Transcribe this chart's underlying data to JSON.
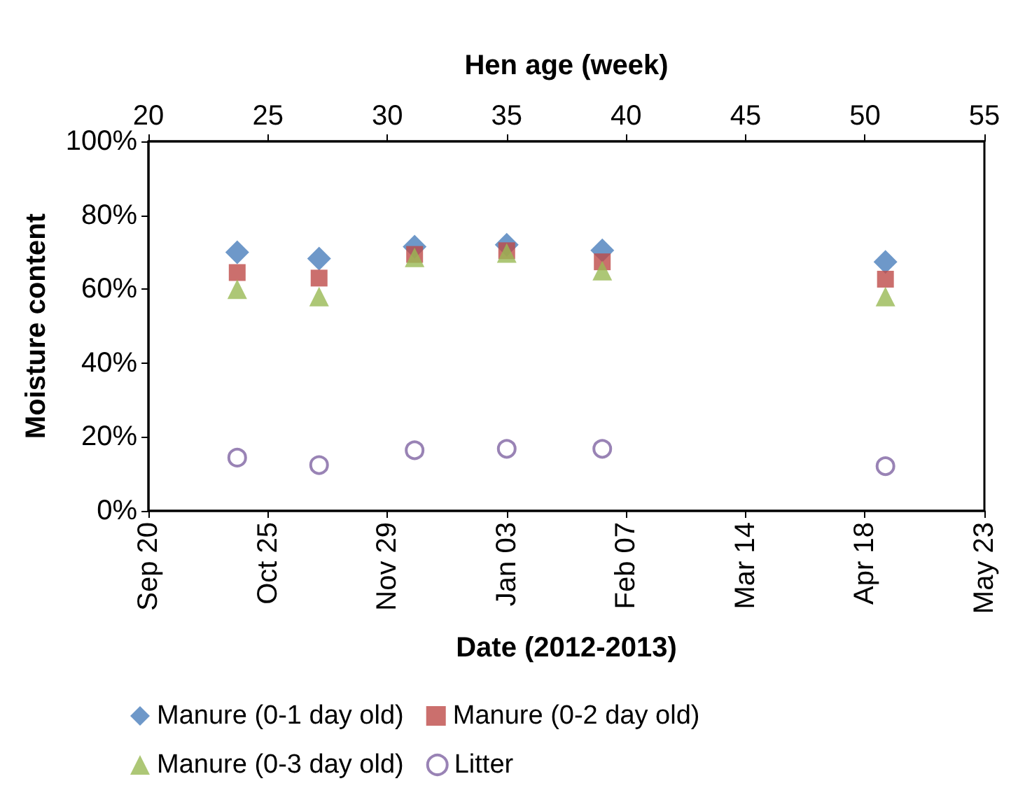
{
  "chart_data": {
    "type": "scatter",
    "x": [
      "2012-10-16",
      "2012-11-09",
      "2012-12-07",
      "2013-01-03",
      "2013-01-31",
      "2013-04-24"
    ],
    "series": [
      {
        "name": "Manure (0-1 day old)",
        "color": "#4a7ebb",
        "marker": "diamond",
        "values": [
          70,
          68.3,
          71.5,
          72,
          70.5,
          67.4
        ]
      },
      {
        "name": "Manure (0-2 day old)",
        "color": "#be4b48",
        "marker": "square",
        "values": [
          64.5,
          63,
          69.4,
          70.4,
          67.4,
          62.7
        ]
      },
      {
        "name": "Manure (0-3 day old)",
        "color": "#98b954",
        "marker": "triangle",
        "values": [
          60,
          58,
          68.6,
          69.8,
          65,
          58
        ]
      },
      {
        "name": "Litter",
        "color": "#8064a2",
        "marker": "circle",
        "values": [
          14.4,
          12.4,
          16.4,
          16.8,
          16.8,
          12.1
        ]
      }
    ],
    "xlabel": "Date (2012-2013)",
    "ylabel": "Moisture content",
    "x2label": "Hen age (week)",
    "xlim": [
      "2012-09-20",
      "2013-05-23"
    ],
    "xticks": [
      {
        "value": "2012-09-20",
        "label": "Sep 20"
      },
      {
        "value": "2012-10-25",
        "label": "Oct 25"
      },
      {
        "value": "2012-11-29",
        "label": "Nov 29"
      },
      {
        "value": "2013-01-03",
        "label": "Jan 03"
      },
      {
        "value": "2013-02-07",
        "label": "Feb 07"
      },
      {
        "value": "2013-03-14",
        "label": "Mar 14"
      },
      {
        "value": "2013-04-18",
        "label": "Apr 18"
      },
      {
        "value": "2013-05-23",
        "label": "May 23"
      }
    ],
    "x2lim": [
      20,
      55
    ],
    "x2ticks": [
      20,
      25,
      30,
      35,
      40,
      45,
      50,
      55
    ],
    "ylim": [
      0,
      100
    ],
    "yticks": [
      {
        "value": 0,
        "label": "0%"
      },
      {
        "value": 20,
        "label": "20%"
      },
      {
        "value": 40,
        "label": "40%"
      },
      {
        "value": 60,
        "label": "60%"
      },
      {
        "value": 80,
        "label": "80%"
      },
      {
        "value": 100,
        "label": "100%"
      }
    ],
    "grid": false,
    "legend": "bottom"
  }
}
